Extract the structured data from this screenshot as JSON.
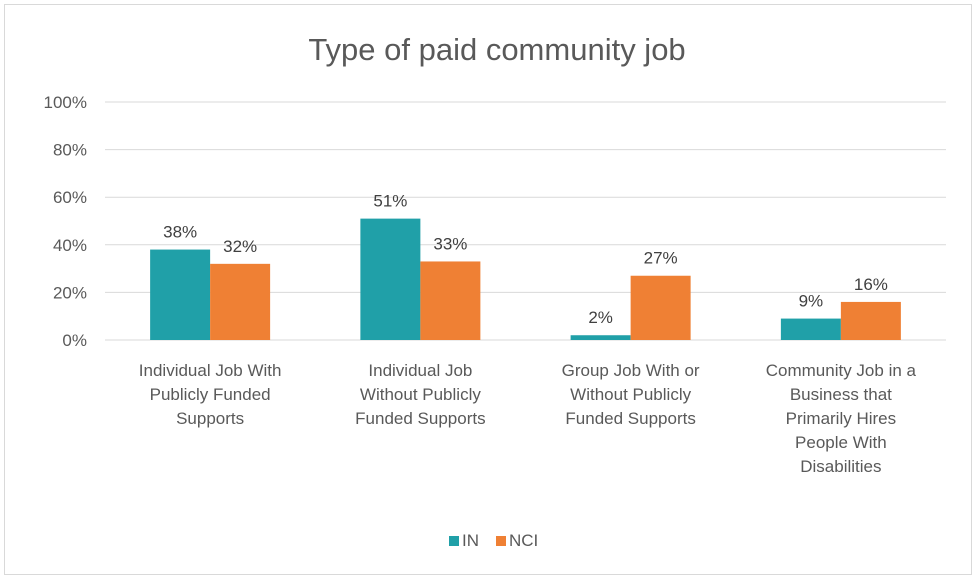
{
  "chart_data": {
    "type": "bar",
    "title": "Type of paid community job",
    "categories": [
      [
        "Individual Job With",
        "Publicly Funded",
        "Supports"
      ],
      [
        "Individual Job",
        "Without Publicly",
        "Funded Supports"
      ],
      [
        "Group Job With or",
        "Without Publicly",
        "Funded Supports"
      ],
      [
        "Community Job in a",
        "Business that",
        "Primarily Hires",
        "People With",
        "Disabilities"
      ]
    ],
    "series": [
      {
        "name": "IN",
        "color": "#20a0a8",
        "values": [
          38,
          51,
          2,
          9
        ],
        "labels": [
          "38%",
          "51%",
          "2%",
          "9%"
        ]
      },
      {
        "name": "NCI",
        "color": "#ef8034",
        "values": [
          32,
          33,
          27,
          16
        ],
        "labels": [
          "32%",
          "33%",
          "27%",
          "16%"
        ]
      }
    ],
    "yticks": [
      "0%",
      "20%",
      "40%",
      "60%",
      "80%",
      "100%"
    ],
    "ylim": [
      0,
      100
    ],
    "grid": true,
    "legend": "bottom"
  }
}
